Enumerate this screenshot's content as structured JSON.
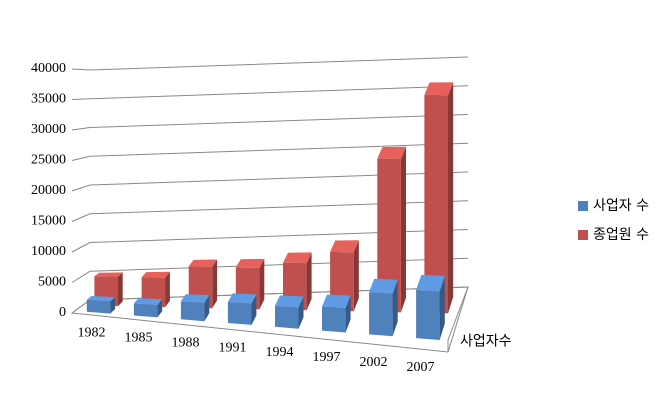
{
  "chart_data": {
    "type": "bar3d",
    "categories": [
      "1982",
      "1985",
      "1988",
      "1991",
      "1994",
      "1997",
      "2002",
      "2007"
    ],
    "series": [
      {
        "name": "사업자 수",
        "color": "#4f81bd",
        "values": [
          2000,
          2000,
          3000,
          3500,
          3500,
          4000,
          7000,
          8000
        ]
      },
      {
        "name": "종업원 수",
        "color": "#c0504d",
        "values": [
          5000,
          5000,
          7000,
          7000,
          8000,
          10000,
          26000,
          37000
        ]
      }
    ],
    "depth_axis_label": "사업자수",
    "ylim": [
      0,
      40000
    ],
    "yticks": [
      0,
      5000,
      10000,
      15000,
      20000,
      25000,
      30000,
      35000,
      40000
    ],
    "grid": true
  }
}
